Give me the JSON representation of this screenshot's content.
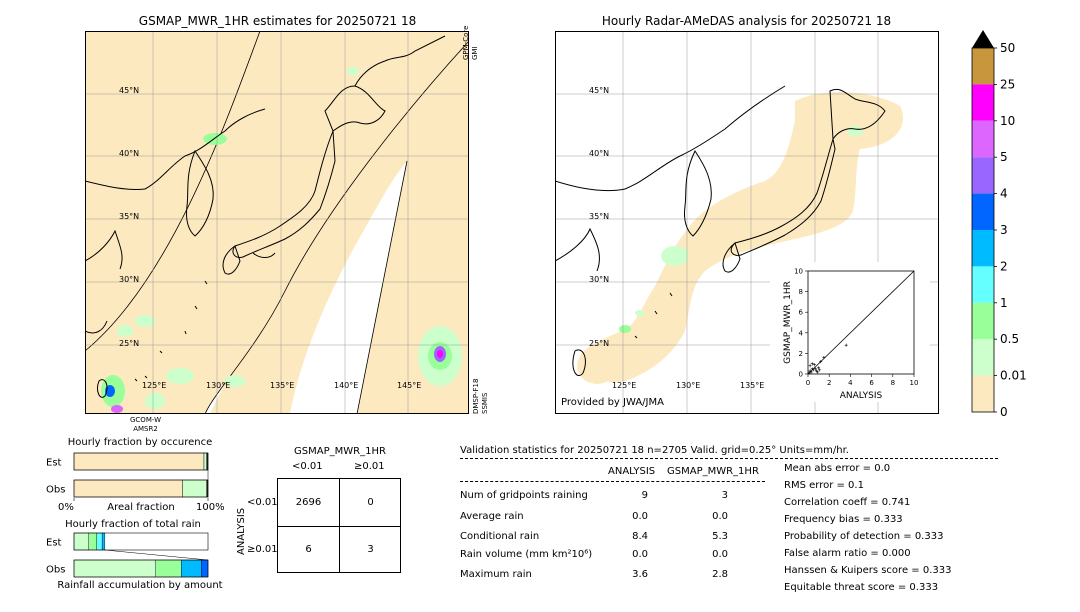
{
  "left_map": {
    "title": "GSMAP_MWR_1HR estimates for 20250721 18",
    "lat_labels": [
      "45°N",
      "40°N",
      "35°N",
      "30°N",
      "25°N"
    ],
    "lon_labels": [
      "125°E",
      "130°E",
      "135°E",
      "140°E",
      "145°E"
    ],
    "sensor_top_right": [
      "GPM-Core",
      "GMI"
    ],
    "sensor_bottom_right": [
      "DMSP-F18",
      "SSMIS"
    ],
    "sensor_bottom_left": [
      "GCOM-W",
      "AMSR2"
    ]
  },
  "right_map": {
    "title": "Hourly Radar-AMeDAS analysis for 20250721 18",
    "lat_labels": [
      "45°N",
      "40°N",
      "35°N",
      "30°N",
      "25°N"
    ],
    "lon_labels": [
      "125°E",
      "130°E",
      "135°E"
    ],
    "provider": "Provided by JWA/JMA"
  },
  "colorbar": {
    "levels": [
      "50",
      "25",
      "10",
      "5",
      "4",
      "3",
      "2",
      "1",
      "0.5",
      "0.01",
      "0"
    ],
    "colors": [
      "#c8963c",
      "#ff00ff",
      "#dd66ff",
      "#9966ff",
      "#0066ff",
      "#00bbff",
      "#66ffff",
      "#99ff99",
      "#ccffcc",
      "#fde9c0"
    ],
    "over_color": "#000000"
  },
  "chart_data": [
    {
      "type": "scatter",
      "xlabel": "ANALYSIS",
      "ylabel": "GSMAP_MWR_1HR",
      "xlim": [
        0,
        10
      ],
      "ylim": [
        0,
        10
      ],
      "ticks": [
        "0",
        "2",
        "4",
        "6",
        "8",
        "10"
      ],
      "diagonal": true,
      "x": [
        0.1,
        0.2,
        0.3,
        0.4,
        0.5,
        0.6,
        0.8,
        1.0,
        1.2,
        1.5,
        3.6,
        0.2,
        0.4,
        0.7,
        0.9,
        1.1
      ],
      "y": [
        0.1,
        0.3,
        0.2,
        0.5,
        0.4,
        0.9,
        0.3,
        0.6,
        1.2,
        1.6,
        2.8,
        0.8,
        1.0,
        0.5,
        0.2,
        0.4
      ]
    },
    {
      "type": "bar",
      "title": "Hourly fraction by occurence",
      "categories": [
        "Est",
        "Obs"
      ],
      "xlabel": "Areal fraction",
      "x_ticks": [
        "0%",
        "100%"
      ],
      "series": [
        {
          "values": [
            0.97,
            0.81
          ],
          "color": "#fde9c0"
        },
        {
          "values": [
            0.02,
            0.18
          ],
          "color": "#ccffcc"
        },
        {
          "values": [
            0.01,
            0.01
          ],
          "color": "#222222"
        }
      ]
    },
    {
      "type": "bar",
      "title": "Hourly fraction of total rain",
      "categories": [
        "Est",
        "Obs"
      ],
      "xlabel": "Rainfall accumulation by amount",
      "series": [
        {
          "values": [
            0.11,
            0.61
          ],
          "color": "#ccffcc"
        },
        {
          "values": [
            0.06,
            0.19
          ],
          "color": "#99ff99"
        },
        {
          "values": [
            0.04,
            0.0
          ],
          "color": "#66ffff"
        },
        {
          "values": [
            0.02,
            0.15
          ],
          "color": "#00bbff"
        },
        {
          "values": [
            0.0,
            0.05
          ],
          "color": "#0066ff"
        }
      ]
    }
  ],
  "contingency": {
    "title": "GSMAP_MWR_1HR",
    "col_headers": [
      "<0.01",
      "≥0.01"
    ],
    "row_axis": "ANALYSIS",
    "row_headers": [
      "<0.01",
      "≥0.01"
    ],
    "cells": [
      [
        "2696",
        "0"
      ],
      [
        "6",
        "3"
      ]
    ]
  },
  "validation": {
    "header": "Validation statistics for 20250721 18  n=2705 Valid. grid=0.25° Units=mm/hr.",
    "col_analysis": "ANALYSIS",
    "col_gsmap": "GSMAP_MWR_1HR",
    "rows": [
      {
        "label": "Num of gridpoints raining",
        "a": "9",
        "g": "3"
      },
      {
        "label": "Average rain",
        "a": "0.0",
        "g": "0.0"
      },
      {
        "label": "Conditional rain",
        "a": "8.4",
        "g": "5.3"
      },
      {
        "label": "Rain volume (mm km²10⁶)",
        "a": "0.0",
        "g": "0.0"
      },
      {
        "label": "Maximum rain",
        "a": "3.6",
        "g": "2.8"
      }
    ],
    "scores": [
      "Mean abs error =    0.0",
      "RMS error =    0.1",
      "Correlation coeff =  0.741",
      "Frequency bias =  0.333",
      "Probability of detection =  0.333",
      "False alarm ratio =  0.000",
      "Hanssen & Kuipers score =  0.333",
      "Equitable threat score =  0.333"
    ]
  }
}
